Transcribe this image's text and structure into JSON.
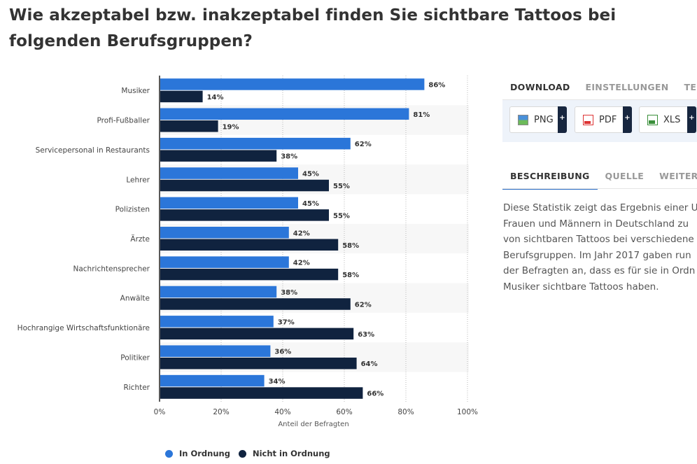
{
  "title": "Wie akzeptabel bzw. inakzeptabel finden Sie sichtbare Tattoos bei folgenden Berufsgruppen?",
  "download_tabs": [
    "DOWNLOAD",
    "EINSTELLUNGEN",
    "TEILEN"
  ],
  "download_buttons": [
    {
      "label": "PNG",
      "icon": "png-file-icon",
      "plus": "+"
    },
    {
      "label": "PDF",
      "icon": "pdf-file-icon",
      "plus": "+"
    },
    {
      "label": "XLS",
      "icon": "xls-file-icon",
      "plus": "+"
    }
  ],
  "info_tabs": [
    "BESCHREIBUNG",
    "QUELLE",
    "WEITERE INFORMATIONEN"
  ],
  "description_lines": [
    "Diese Statistik zeigt das Ergebnis einer U",
    "Frauen und Männern in Deutschland zu",
    "von sichtbaren Tattoos bei verschiedene",
    "Berufsgruppen. Im Jahr 2017 gaben run",
    "der Befragten an, dass es für sie in Ordn",
    "Musiker sichtbare Tattoos haben."
  ],
  "chart_data": {
    "type": "bar",
    "orientation": "horizontal",
    "categories": [
      "Musiker",
      "Profi-Fußballer",
      "Servicepersonal in Restaurants",
      "Lehrer",
      "Polizisten",
      "Ärzte",
      "Nachrichtensprecher",
      "Anwälte",
      "Hochrangige Wirtschaftsfunktionäre",
      "Politiker",
      "Richter"
    ],
    "series": [
      {
        "name": "In Ordnung",
        "color": "#2b76d9",
        "values": [
          86,
          81,
          62,
          45,
          45,
          42,
          42,
          38,
          37,
          36,
          34
        ]
      },
      {
        "name": "Nicht in Ordnung",
        "color": "#10233f",
        "values": [
          14,
          19,
          38,
          55,
          55,
          58,
          58,
          62,
          63,
          64,
          66
        ]
      }
    ],
    "xlabel": "Anteil der Befragten",
    "xlim": [
      0,
      100
    ],
    "xticks": [
      "0%",
      "20%",
      "40%",
      "60%",
      "80%",
      "100%"
    ],
    "value_suffix": "%",
    "grid": true,
    "legend_position": "bottom-left"
  }
}
